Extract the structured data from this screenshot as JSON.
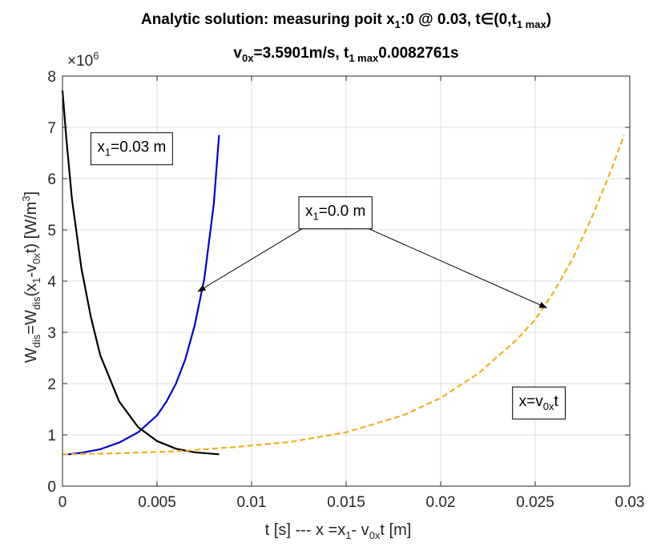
{
  "chart_data": {
    "type": "line",
    "title": {
      "line1": [
        {
          "t": "Analytic solution: measuring poit   x"
        },
        {
          "t": "1",
          "sub": true
        },
        {
          "t": ":0  @ 0.03,   t∈(0,t"
        },
        {
          "t": "1 max",
          "sub": true
        },
        {
          "t": ")"
        }
      ],
      "line2": [
        {
          "t": "v"
        },
        {
          "t": "0x",
          "sub": true
        },
        {
          "t": "=3.5901m/s,  t"
        },
        {
          "t": "1 max",
          "sub": true
        },
        {
          "t": "0.0082761s"
        }
      ]
    },
    "xlabel": [
      {
        "t": "t  [s]   ---   x =x"
      },
      {
        "t": "1",
        "sub": true
      },
      {
        "t": "- v"
      },
      {
        "t": "0x",
        "sub": true
      },
      {
        "t": "t   [m]"
      }
    ],
    "ylabel": [
      {
        "t": "W"
      },
      {
        "t": "dis",
        "sub": true
      },
      {
        "t": "=W"
      },
      {
        "t": "dis",
        "sub": true
      },
      {
        "t": "(x"
      },
      {
        "t": "1",
        "sub": true
      },
      {
        "t": "-v"
      },
      {
        "t": "0x",
        "sub": true
      },
      {
        "t": "t)   [W/m"
      },
      {
        "t": "3",
        "sup": true
      },
      {
        "t": "]"
      }
    ],
    "y_exponent": "×10",
    "y_exponent_power": "6",
    "xlim": [
      0,
      0.03
    ],
    "ylim": [
      0,
      8
    ],
    "xticks": [
      0,
      0.005,
      0.01,
      0.015,
      0.02,
      0.025,
      0.03
    ],
    "xtick_labels": [
      "0",
      "0.005",
      "0.01",
      "0.015",
      "0.02",
      "0.025",
      "0.03"
    ],
    "yticks": [
      0,
      1,
      2,
      3,
      4,
      5,
      6,
      7,
      8
    ],
    "ytick_labels": [
      "0",
      "1",
      "2",
      "3",
      "4",
      "5",
      "6",
      "7",
      "8"
    ],
    "grid": true,
    "series": [
      {
        "color": "#0000cc",
        "style": "solid",
        "x": [
          0.0003,
          0.001,
          0.002,
          0.003,
          0.004,
          0.005,
          0.0055,
          0.006,
          0.0065,
          0.007,
          0.0075,
          0.008,
          0.00828
        ],
        "y": [
          0.62,
          0.65,
          0.72,
          0.85,
          1.05,
          1.38,
          1.65,
          2.0,
          2.48,
          3.15,
          4.05,
          5.5,
          6.85
        ]
      },
      {
        "color": "#000000",
        "style": "solid",
        "x": [
          0.0,
          0.0002,
          0.0005,
          0.001,
          0.0015,
          0.002,
          0.003,
          0.004,
          0.005,
          0.006,
          0.007,
          0.008,
          0.00828
        ],
        "y": [
          7.72,
          6.8,
          5.6,
          4.25,
          3.3,
          2.55,
          1.65,
          1.15,
          0.88,
          0.73,
          0.66,
          0.63,
          0.62
        ]
      },
      {
        "color": "#EDB120",
        "style": "dashed",
        "x": [
          0.0,
          0.003,
          0.006,
          0.009,
          0.012,
          0.015,
          0.018,
          0.02,
          0.022,
          0.024,
          0.025,
          0.026,
          0.027,
          0.028,
          0.029,
          0.0297
        ],
        "y": [
          0.62,
          0.64,
          0.68,
          0.76,
          0.86,
          1.05,
          1.38,
          1.72,
          2.2,
          2.85,
          3.25,
          3.8,
          4.45,
          5.25,
          6.15,
          6.85
        ]
      }
    ],
    "annotations": [
      {
        "text": [
          {
            "t": "x"
          },
          {
            "t": "1",
            "sub": true
          },
          {
            "t": "=0.03 m"
          }
        ],
        "x": 0.0015,
        "y": 6.52
      },
      {
        "text": [
          {
            "t": "x"
          },
          {
            "t": "1",
            "sub": true
          },
          {
            "t": "=0.0 m"
          }
        ],
        "x": 0.0125,
        "y": 5.27,
        "arrows_to": [
          [
            0.00718,
            3.8
          ],
          [
            0.0256,
            3.48
          ]
        ]
      },
      {
        "text": [
          {
            "t": "x=v"
          },
          {
            "t": "0x",
            "sub": true
          },
          {
            "t": "t"
          }
        ],
        "x": 0.0238,
        "y": 1.56
      }
    ]
  }
}
